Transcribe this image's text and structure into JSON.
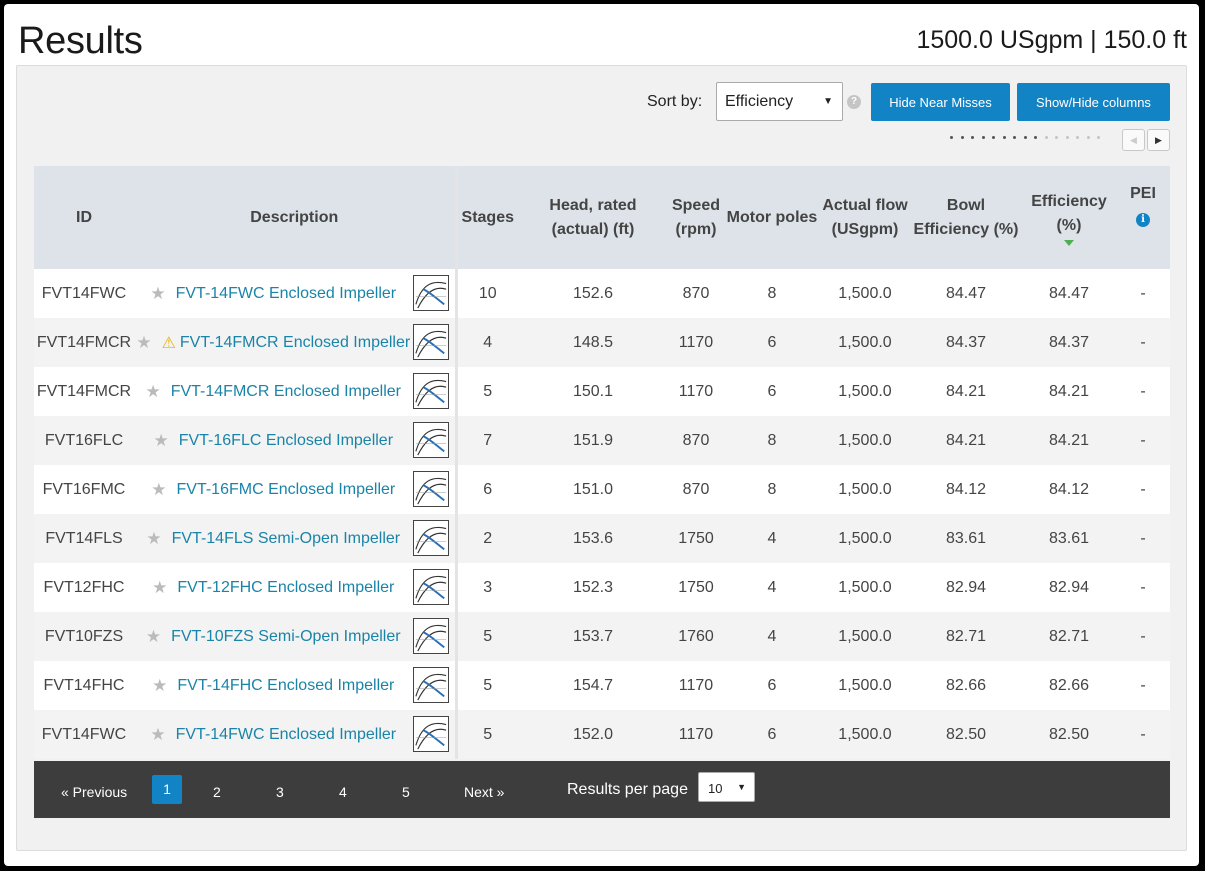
{
  "page": {
    "title": "Results",
    "query_summary": "1500.0 USgpm | 150.0 ft"
  },
  "toolbar": {
    "sort_label": "Sort by:",
    "sort_value": "Efficiency",
    "help_icon": "?",
    "hide_near_misses_label": "Hide Near Misses",
    "show_hide_columns_label": "Show/Hide columns",
    "scroll_left_icon": "chevron-left-icon",
    "scroll_right_icon": "chevron-right-icon"
  },
  "table": {
    "headers": {
      "id": "ID",
      "description": "Description",
      "stages": "Stages",
      "head": "Head, rated (actual) (ft)",
      "speed": "Speed (rpm)",
      "poles": "Motor poles",
      "flow": "Actual flow (USgpm)",
      "bowl_eff": "Bowl Efficiency (%)",
      "eff": "Efficiency (%)",
      "pei": "PEI"
    },
    "sorted_column": "eff",
    "rows": [
      {
        "id": "FVT14FWC",
        "warning": false,
        "desc": "FVT-14FWC Enclosed Impeller",
        "stages": "10",
        "head": "152.6",
        "speed": "870",
        "poles": "8",
        "flow": "1,500.0",
        "bowl": "84.47",
        "eff": "84.47",
        "pei": "-"
      },
      {
        "id": "FVT14FMCR",
        "warning": true,
        "desc": "FVT-14FMCR Enclosed Impeller",
        "stages": "4",
        "head": "148.5",
        "speed": "1170",
        "poles": "6",
        "flow": "1,500.0",
        "bowl": "84.37",
        "eff": "84.37",
        "pei": "-"
      },
      {
        "id": "FVT14FMCR",
        "warning": false,
        "desc": "FVT-14FMCR Enclosed Impeller",
        "stages": "5",
        "head": "150.1",
        "speed": "1170",
        "poles": "6",
        "flow": "1,500.0",
        "bowl": "84.21",
        "eff": "84.21",
        "pei": "-"
      },
      {
        "id": "FVT16FLC",
        "warning": false,
        "desc": "FVT-16FLC Enclosed Impeller",
        "stages": "7",
        "head": "151.9",
        "speed": "870",
        "poles": "8",
        "flow": "1,500.0",
        "bowl": "84.21",
        "eff": "84.21",
        "pei": "-"
      },
      {
        "id": "FVT16FMC",
        "warning": false,
        "desc": "FVT-16FMC Enclosed Impeller",
        "stages": "6",
        "head": "151.0",
        "speed": "870",
        "poles": "8",
        "flow": "1,500.0",
        "bowl": "84.12",
        "eff": "84.12",
        "pei": "-"
      },
      {
        "id": "FVT14FLS",
        "warning": false,
        "desc": "FVT-14FLS Semi-Open Impeller",
        "stages": "2",
        "head": "153.6",
        "speed": "1750",
        "poles": "4",
        "flow": "1,500.0",
        "bowl": "83.61",
        "eff": "83.61",
        "pei": "-"
      },
      {
        "id": "FVT12FHC",
        "warning": false,
        "desc": "FVT-12FHC Enclosed Impeller",
        "stages": "3",
        "head": "152.3",
        "speed": "1750",
        "poles": "4",
        "flow": "1,500.0",
        "bowl": "82.94",
        "eff": "82.94",
        "pei": "-"
      },
      {
        "id": "FVT10FZS",
        "warning": false,
        "desc": "FVT-10FZS Semi-Open Impeller",
        "stages": "5",
        "head": "153.7",
        "speed": "1760",
        "poles": "4",
        "flow": "1,500.0",
        "bowl": "82.71",
        "eff": "82.71",
        "pei": "-"
      },
      {
        "id": "FVT14FHC",
        "warning": false,
        "desc": "FVT-14FHC Enclosed Impeller",
        "stages": "5",
        "head": "154.7",
        "speed": "1170",
        "poles": "6",
        "flow": "1,500.0",
        "bowl": "82.66",
        "eff": "82.66",
        "pei": "-"
      },
      {
        "id": "FVT14FWC",
        "warning": false,
        "desc": "FVT-14FWC Enclosed Impeller",
        "stages": "5",
        "head": "152.0",
        "speed": "1170",
        "poles": "6",
        "flow": "1,500.0",
        "bowl": "82.50",
        "eff": "82.50",
        "pei": "-"
      }
    ]
  },
  "pagination": {
    "previous_label": "« Previous",
    "next_label": "Next »",
    "pages": [
      "1",
      "2",
      "3",
      "4",
      "5"
    ],
    "current_page": "1",
    "results_per_page_label": "Results per page",
    "results_per_page_value": "10"
  },
  "colors": {
    "accent": "#1284c6",
    "link": "#1a84a8",
    "header_bg": "#dde3e8",
    "pager_bg": "#3d3d3d",
    "warning": "#e8b000",
    "sort_indicator": "#4caf50"
  }
}
